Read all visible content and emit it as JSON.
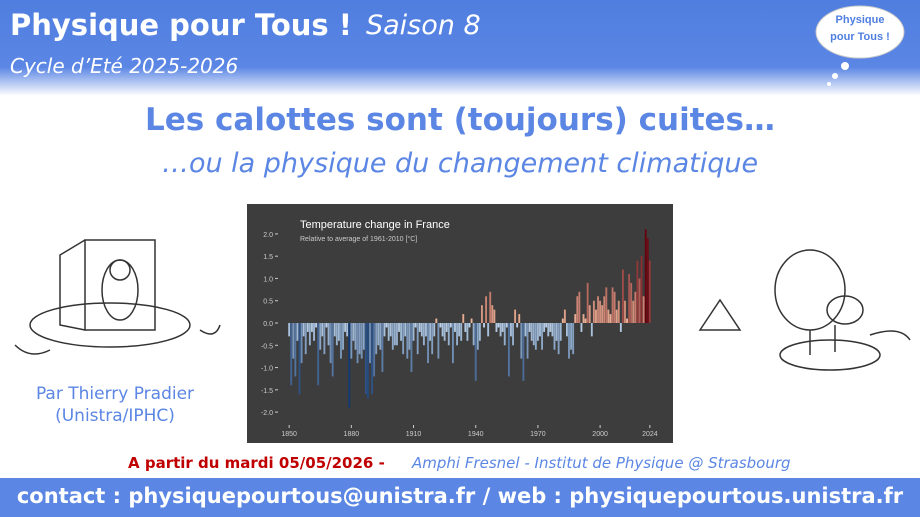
{
  "header": {
    "title": "Physique pour Tous !",
    "season": "Saison 8",
    "cycle": "Cycle d’Eté 2025-2026",
    "bubble": [
      "Physique",
      "pour Tous !"
    ]
  },
  "talk": {
    "title": "Les calottes sont (toujours) cuites…",
    "subtitle": "…ou la physique du changement climatique",
    "speaker": "Par Thierry Pradier",
    "affiliation": "(Unistra/IPHC)",
    "date": "A partir du mardi 05/05/2026 -",
    "place": "Amphi Fresnel - Institut de Physique @ Strasbourg"
  },
  "footer": "contact : physiquepourtous@unistra.fr / web : physiquepourtous.unistra.fr",
  "chart_data": {
    "type": "bar",
    "title": "Temperature change in France",
    "subtitle": "Relative to average of 1961-2010  [°C]",
    "x": [
      1850,
      1851,
      1852,
      1853,
      1854,
      1855,
      1856,
      1857,
      1858,
      1859,
      1860,
      1861,
      1862,
      1863,
      1864,
      1865,
      1866,
      1867,
      1868,
      1869,
      1870,
      1871,
      1872,
      1873,
      1874,
      1875,
      1876,
      1877,
      1878,
      1879,
      1880,
      1881,
      1882,
      1883,
      1884,
      1885,
      1886,
      1887,
      1888,
      1889,
      1890,
      1891,
      1892,
      1893,
      1894,
      1895,
      1896,
      1897,
      1898,
      1899,
      1900,
      1901,
      1902,
      1903,
      1904,
      1905,
      1906,
      1907,
      1908,
      1909,
      1910,
      1911,
      1912,
      1913,
      1914,
      1915,
      1916,
      1917,
      1918,
      1919,
      1920,
      1921,
      1922,
      1923,
      1924,
      1925,
      1926,
      1927,
      1928,
      1929,
      1930,
      1931,
      1932,
      1933,
      1934,
      1935,
      1936,
      1937,
      1938,
      1939,
      1940,
      1941,
      1942,
      1943,
      1944,
      1945,
      1946,
      1947,
      1948,
      1949,
      1950,
      1951,
      1952,
      1953,
      1954,
      1955,
      1956,
      1957,
      1958,
      1959,
      1960,
      1961,
      1962,
      1963,
      1964,
      1965,
      1966,
      1967,
      1968,
      1969,
      1970,
      1971,
      1972,
      1973,
      1974,
      1975,
      1976,
      1977,
      1978,
      1979,
      1980,
      1981,
      1982,
      1983,
      1984,
      1985,
      1986,
      1987,
      1988,
      1989,
      1990,
      1991,
      1992,
      1993,
      1994,
      1995,
      1996,
      1997,
      1998,
      1999,
      2000,
      2001,
      2002,
      2003,
      2004,
      2005,
      2006,
      2007,
      2008,
      2009,
      2010,
      2011,
      2012,
      2013,
      2014,
      2015,
      2016,
      2017,
      2018,
      2019,
      2020,
      2021,
      2022,
      2023,
      2024
    ],
    "values": [
      -0.3,
      -1.4,
      -0.8,
      -1.2,
      -0.4,
      -1.6,
      -0.9,
      -0.3,
      -0.7,
      -0.2,
      -0.5,
      -0.2,
      -0.4,
      -0.1,
      -1.4,
      -0.6,
      -0.3,
      -0.7,
      -0.1,
      -0.5,
      -0.9,
      -1.2,
      -0.3,
      -0.5,
      -0.4,
      -0.8,
      -0.6,
      -0.2,
      -0.3,
      -1.9,
      -0.8,
      -0.4,
      -0.6,
      -0.9,
      -0.7,
      -0.8,
      -0.6,
      -1.6,
      -1.7,
      -0.9,
      -1.6,
      -1.2,
      -0.7,
      -0.5,
      -0.6,
      -1.1,
      -0.3,
      -0.1,
      -0.4,
      -0.3,
      -0.6,
      -0.5,
      -0.5,
      -0.2,
      -0.4,
      -0.7,
      -0.3,
      -0.8,
      -0.6,
      -1.1,
      -0.4,
      -0.1,
      -0.7,
      -0.2,
      -0.3,
      -0.5,
      -0.3,
      -0.9,
      -0.4,
      -0.7,
      -0.3,
      0.1,
      -0.8,
      -0.1,
      -0.3,
      -0.4,
      -0.2,
      -0.5,
      -0.1,
      -0.9,
      -0.2,
      -0.5,
      -0.3,
      -0.4,
      0.2,
      -0.2,
      -0.4,
      -0.1,
      0.1,
      -0.5,
      -1.3,
      -0.6,
      -0.4,
      0.4,
      -0.1,
      0.6,
      -0.3,
      0.7,
      0.4,
      0.3,
      -0.2,
      -0.1,
      -0.3,
      -0.2,
      -0.5,
      -0.1,
      -1.2,
      -0.3,
      -0.5,
      0.3,
      -0.1,
      0.2,
      -0.8,
      -1.3,
      -0.3,
      -0.8,
      -0.2,
      -0.4,
      -0.5,
      -0.6,
      -0.4,
      -0.3,
      -0.6,
      -0.2,
      -0.1,
      -0.3,
      -0.2,
      -0.3,
      -0.6,
      -0.4,
      -0.7,
      -0.4,
      0.1,
      0.3,
      -0.3,
      -0.8,
      -0.6,
      -0.7,
      0.2,
      0.6,
      0.7,
      -0.2,
      0.2,
      0.1,
      0.9,
      0.4,
      -0.3,
      0.5,
      0.3,
      0.6,
      0.5,
      0.4,
      0.6,
      0.8,
      0.3,
      0.2,
      0.8,
      0.7,
      0.3,
      0.5,
      -0.2,
      1.2,
      0.5,
      0.1,
      1.1,
      0.9,
      0.5,
      0.7,
      1.4,
      1.0,
      1.5,
      0.6,
      2.1,
      1.9,
      1.4
    ],
    "xlim": [
      1848,
      2026
    ],
    "xticks": [
      1850,
      1880,
      1910,
      1940,
      1970,
      2000,
      2024
    ],
    "ylim": [
      -2.2,
      2.2
    ],
    "yticks": [
      {
        "value": -2,
        "label": "-2.0"
      },
      -1.5,
      {
        "value": -1,
        "label": "-1.0"
      },
      -0.5,
      {
        "value": 0,
        "label": "0.0"
      },
      0.5,
      {
        "value": 1,
        "label": "1.0"
      },
      1.5,
      {
        "value": 2,
        "label": "2.0"
      }
    ]
  }
}
